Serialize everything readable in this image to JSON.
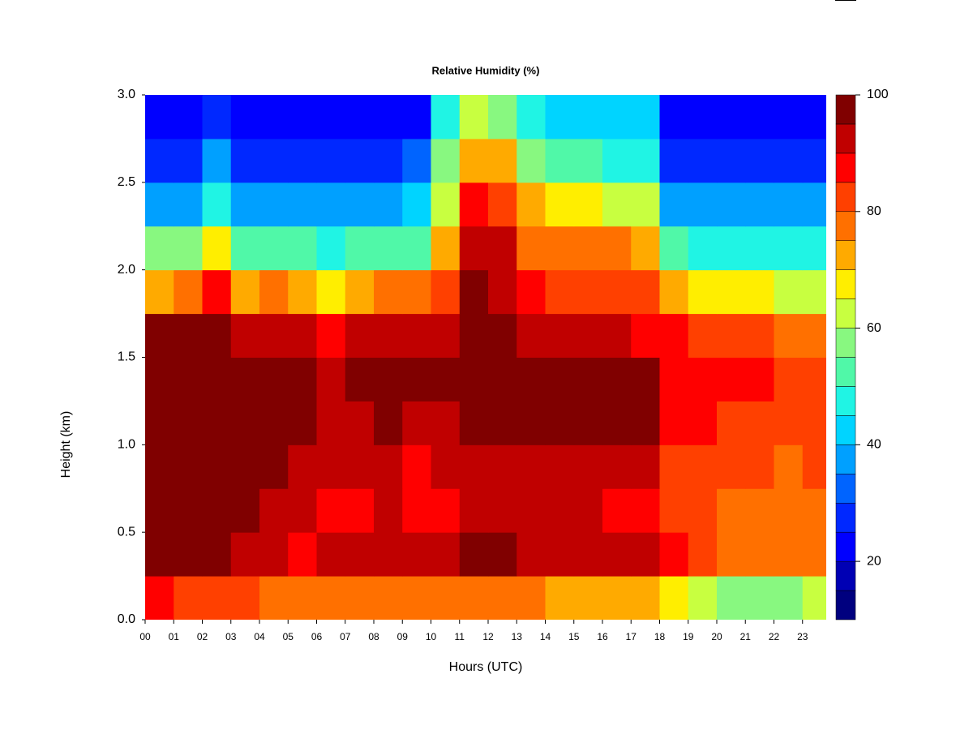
{
  "chart_data": {
    "type": "heatmap",
    "title": "Relative Humidity (%)",
    "x_label": "Hours (UTC)",
    "y_label": "Height (km)",
    "xlim": [
      0,
      23.83
    ],
    "ylim": [
      0,
      3
    ],
    "xticks": [
      {
        "value": 0,
        "label": "00"
      },
      {
        "value": 1,
        "label": "01"
      },
      {
        "value": 2,
        "label": "02"
      },
      {
        "value": 3,
        "label": "03"
      },
      {
        "value": 4,
        "label": "04"
      },
      {
        "value": 5,
        "label": "05"
      },
      {
        "value": 6,
        "label": "06"
      },
      {
        "value": 7,
        "label": "07"
      },
      {
        "value": 8,
        "label": "08"
      },
      {
        "value": 9,
        "label": "09"
      },
      10,
      11,
      12,
      13,
      14,
      15,
      16,
      17,
      18,
      19,
      20,
      21,
      22,
      23
    ],
    "yticks": [
      {
        "value": 0,
        "label": "0.0"
      },
      {
        "value": 0.5,
        "label": "0.5"
      },
      {
        "value": 1,
        "label": "1.0"
      },
      {
        "value": 1.5,
        "label": "1.5"
      },
      {
        "value": 2,
        "label": "2.0"
      },
      {
        "value": 2.5,
        "label": "2.5"
      },
      {
        "value": 3,
        "label": "3.0"
      }
    ],
    "x_bins": [
      0,
      1,
      2,
      3,
      4,
      5,
      6,
      7,
      8,
      9,
      10,
      11,
      12,
      13,
      14,
      15,
      16,
      17,
      18,
      19,
      20,
      21,
      22,
      23,
      24
    ],
    "y_bins": [
      0,
      0.25,
      0.5,
      0.75,
      1,
      1.25,
      1.5,
      1.75,
      2,
      2.25,
      2.5,
      2.75,
      3
    ],
    "z": [
      [
        85,
        82,
        80,
        80,
        78,
        78,
        78,
        75,
        75,
        75,
        75,
        75,
        75,
        75,
        72,
        72,
        70,
        70,
        65,
        60,
        55,
        55,
        58,
        62
      ],
      [
        100,
        97,
        95,
        92,
        90,
        88,
        90,
        90,
        92,
        90,
        90,
        95,
        95,
        92,
        92,
        92,
        90,
        90,
        85,
        80,
        78,
        75,
        75,
        75
      ],
      [
        100,
        100,
        98,
        95,
        92,
        90,
        88,
        88,
        90,
        88,
        88,
        92,
        92,
        90,
        90,
        90,
        88,
        88,
        82,
        80,
        78,
        78,
        75,
        78
      ],
      [
        100,
        100,
        100,
        95,
        95,
        92,
        90,
        90,
        92,
        88,
        90,
        92,
        92,
        90,
        92,
        92,
        90,
        90,
        82,
        82,
        80,
        80,
        78,
        80
      ],
      [
        100,
        100,
        100,
        97,
        100,
        100,
        90,
        92,
        95,
        92,
        92,
        95,
        95,
        95,
        95,
        95,
        95,
        95,
        85,
        85,
        82,
        82,
        80,
        82
      ],
      [
        100,
        100,
        100,
        97,
        100,
        100,
        92,
        95,
        96,
        95,
        95,
        97,
        97,
        96,
        96,
        97,
        97,
        96,
        88,
        88,
        85,
        85,
        82,
        82
      ],
      [
        95,
        97,
        97,
        92,
        92,
        90,
        88,
        90,
        90,
        90,
        90,
        97,
        95,
        92,
        90,
        90,
        90,
        88,
        85,
        82,
        80,
        80,
        78,
        78
      ],
      [
        72,
        75,
        85,
        72,
        75,
        70,
        68,
        72,
        75,
        75,
        80,
        95,
        92,
        85,
        82,
        82,
        82,
        80,
        70,
        68,
        65,
        65,
        62,
        62
      ],
      [
        55,
        55,
        65,
        50,
        52,
        50,
        48,
        50,
        52,
        52,
        72,
        92,
        90,
        78,
        75,
        75,
        75,
        72,
        50,
        48,
        45,
        45,
        45,
        45
      ],
      [
        38,
        38,
        48,
        35,
        38,
        35,
        35,
        38,
        38,
        40,
        62,
        85,
        82,
        70,
        68,
        65,
        62,
        60,
        38,
        35,
        35,
        35,
        35,
        38
      ],
      [
        25,
        25,
        35,
        25,
        28,
        25,
        25,
        28,
        28,
        30,
        55,
        72,
        70,
        58,
        52,
        50,
        48,
        48,
        28,
        25,
        25,
        25,
        25,
        28
      ],
      [
        20,
        20,
        25,
        20,
        20,
        20,
        20,
        20,
        20,
        22,
        45,
        60,
        58,
        48,
        42,
        40,
        40,
        40,
        22,
        20,
        20,
        20,
        20,
        22
      ]
    ],
    "levels": [
      10,
      15,
      20,
      25,
      30,
      35,
      40,
      45,
      50,
      55,
      60,
      65,
      70,
      75,
      80,
      85,
      90,
      95,
      100
    ],
    "colors": [
      "#00007f",
      "#0000b4",
      "#0000ff",
      "#0028ff",
      "#0064ff",
      "#00a0ff",
      "#00d4ff",
      "#20f4e4",
      "#50f8a8",
      "#88f880",
      "#c8ff40",
      "#ffee00",
      "#ffaa00",
      "#ff7000",
      "#ff4000",
      "#ff0000",
      "#c00000",
      "#800000"
    ],
    "colorbar_ticks": [
      20,
      40,
      60,
      80,
      100
    ]
  }
}
